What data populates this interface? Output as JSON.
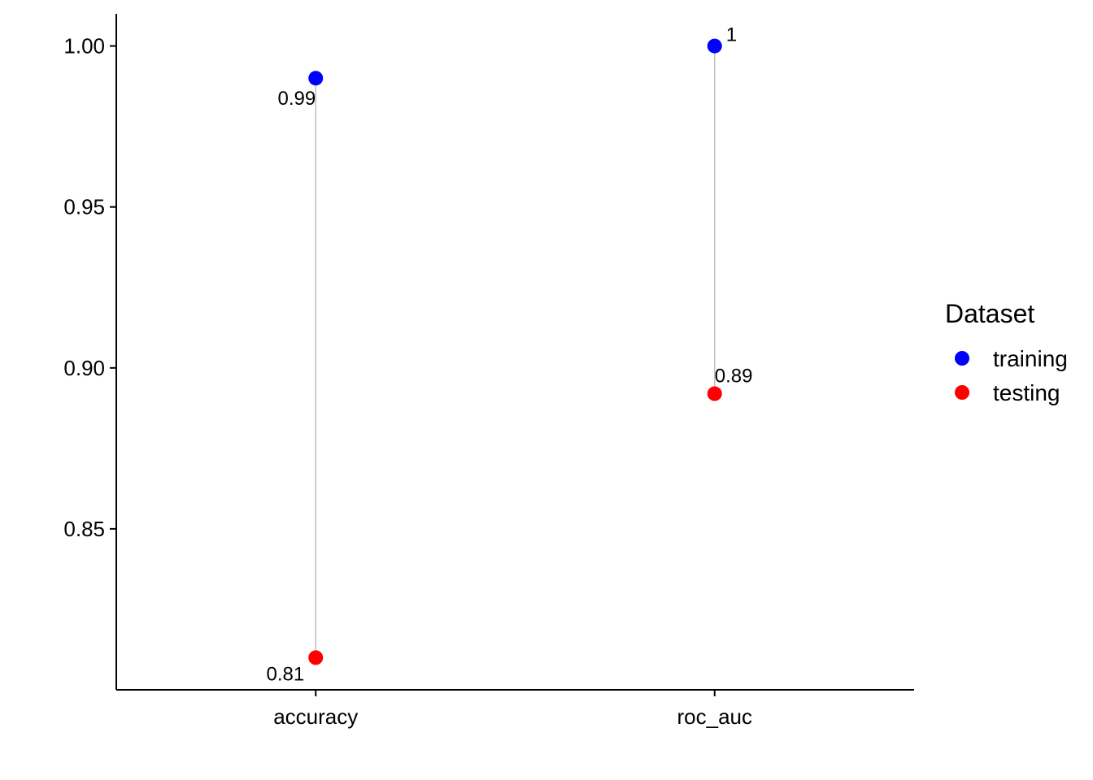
{
  "chart_data": {
    "type": "scatter",
    "subtype": "dumbbell",
    "categories": [
      "accuracy",
      "roc_auc"
    ],
    "series": [
      {
        "name": "training",
        "color": "#0000ff",
        "values": [
          0.99,
          1.0
        ],
        "labels": [
          "0.99",
          "1"
        ]
      },
      {
        "name": "testing",
        "color": "#ff0000",
        "values": [
          0.81,
          0.892
        ],
        "labels": [
          "0.81",
          "0.89"
        ]
      }
    ],
    "ylim": [
      0.8,
      1.01
    ],
    "yticks": [
      0.85,
      0.9,
      0.95,
      1.0
    ],
    "ytick_labels": [
      "0.85",
      "0.90",
      "0.95",
      "1.00"
    ],
    "connector_color": "#bebebe",
    "grid": false,
    "legend": {
      "title": "Dataset",
      "position": "right"
    }
  }
}
